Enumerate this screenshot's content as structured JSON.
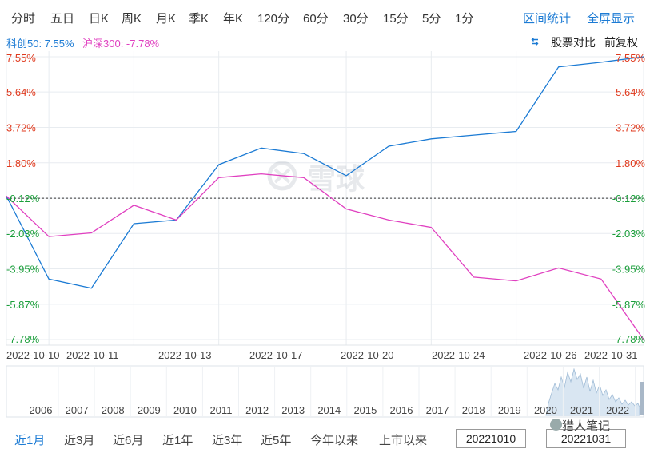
{
  "period_tabs": [
    "分时",
    "五日",
    "日K",
    "周K",
    "月K",
    "季K",
    "年K",
    "120分",
    "60分",
    "30分",
    "15分",
    "5分",
    "1分"
  ],
  "tools": {
    "interval_stats": "区间统计",
    "fullscreen": "全屏显示"
  },
  "legend": {
    "series_a": "科创50: 7.55%",
    "series_b": "沪深300: -7.78%",
    "compare_label": "股票对比",
    "adjust_label": "前复权"
  },
  "colors": {
    "series_a": "#1c7bd4",
    "series_b": "#e040c0",
    "positive": "#e03a1e",
    "negative": "#1a9e3a",
    "accent": "#1c7bd4"
  },
  "watermark_logo": "雪球",
  "chart_data": {
    "type": "line",
    "x": [
      "2022-10-10",
      "2022-10-11",
      "2022-10-12",
      "2022-10-13",
      "2022-10-14",
      "2022-10-17",
      "2022-10-18",
      "2022-10-19",
      "2022-10-20",
      "2022-10-21",
      "2022-10-24",
      "2022-10-25",
      "2022-10-26",
      "2022-10-27",
      "2022-10-28",
      "2022-10-31"
    ],
    "series": [
      {
        "name": "科创50",
        "values": [
          0,
          -4.5,
          -5.0,
          -1.5,
          -1.3,
          1.7,
          2.6,
          2.3,
          1.1,
          2.7,
          3.1,
          3.3,
          3.5,
          7.0,
          7.25,
          7.55
        ]
      },
      {
        "name": "沪深300",
        "values": [
          0,
          -2.2,
          -2.0,
          -0.5,
          -1.3,
          1.0,
          1.2,
          1.0,
          -0.7,
          -1.3,
          -1.7,
          -4.4,
          -4.6,
          -3.9,
          -4.5,
          -7.78
        ]
      }
    ],
    "y_tick_labels": [
      "7.55%",
      "5.64%",
      "3.72%",
      "1.80%",
      "-0.12%",
      "-2.03%",
      "-3.95%",
      "-5.87%",
      "-7.78%"
    ],
    "y_ticks": [
      7.55,
      5.64,
      3.72,
      1.8,
      -0.12,
      -2.03,
      -3.95,
      -5.87,
      -7.78
    ],
    "ylim": [
      -7.78,
      7.55
    ],
    "x_tick_labels": [
      "2022-10-10",
      "2022-10-11",
      "2022-10-13",
      "2022-10-17",
      "2022-10-20",
      "2022-10-24",
      "2022-10-26",
      "2022-10-31"
    ],
    "x_tick_index": [
      0,
      1,
      3,
      5,
      8,
      10,
      12,
      15
    ],
    "baseline": -0.12,
    "grid": true
  },
  "navigator": {
    "years": [
      "2006",
      "2007",
      "2008",
      "2009",
      "2010",
      "2011",
      "2012",
      "2013",
      "2014",
      "2015",
      "2016",
      "2017",
      "2018",
      "2019",
      "2020",
      "2021",
      "2022"
    ]
  },
  "ranges": [
    "近1月",
    "近3月",
    "近6月",
    "近1年",
    "近3年",
    "近5年",
    "今年以来",
    "上市以来"
  ],
  "active_range": "近1月",
  "date_from": "20221010",
  "date_to": "20221031",
  "watermark_text": "猎人笔记"
}
